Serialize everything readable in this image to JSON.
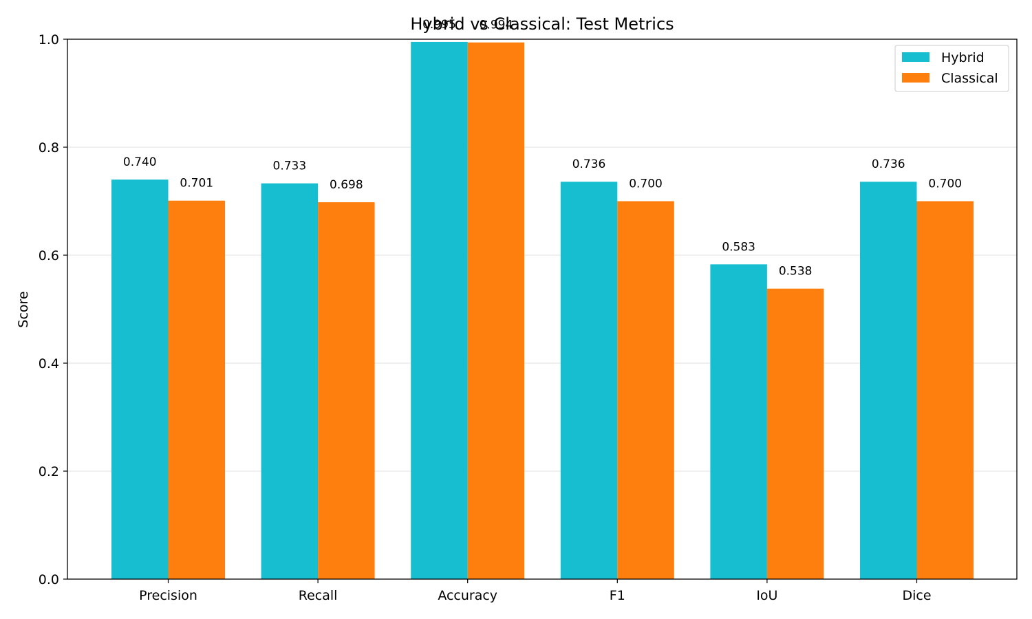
{
  "chart_data": {
    "type": "bar",
    "title": "Hybrid vs Classical: Test Metrics",
    "xlabel": "",
    "ylabel": "Score",
    "ylim": [
      0,
      1.0
    ],
    "yticks": [
      "0.0",
      "0.2",
      "0.4",
      "0.6",
      "0.8",
      "1.0"
    ],
    "grid": "horizontal",
    "legend_position": "top-right",
    "categories": [
      "Precision",
      "Recall",
      "Accuracy",
      "F1",
      "IoU",
      "Dice"
    ],
    "series": [
      {
        "name": "Hybrid",
        "color": "#17becf",
        "values": [
          0.74,
          0.733,
          0.995,
          0.736,
          0.583,
          0.736
        ],
        "labels": [
          "0.740",
          "0.733",
          "0.995",
          "0.736",
          "0.583",
          "0.736"
        ]
      },
      {
        "name": "Classical",
        "color": "#ff7f0e",
        "values": [
          0.701,
          0.698,
          0.994,
          0.7,
          0.538,
          0.7
        ],
        "labels": [
          "0.701",
          "0.698",
          "0.994",
          "0.700",
          "0.538",
          "0.700"
        ]
      }
    ]
  }
}
